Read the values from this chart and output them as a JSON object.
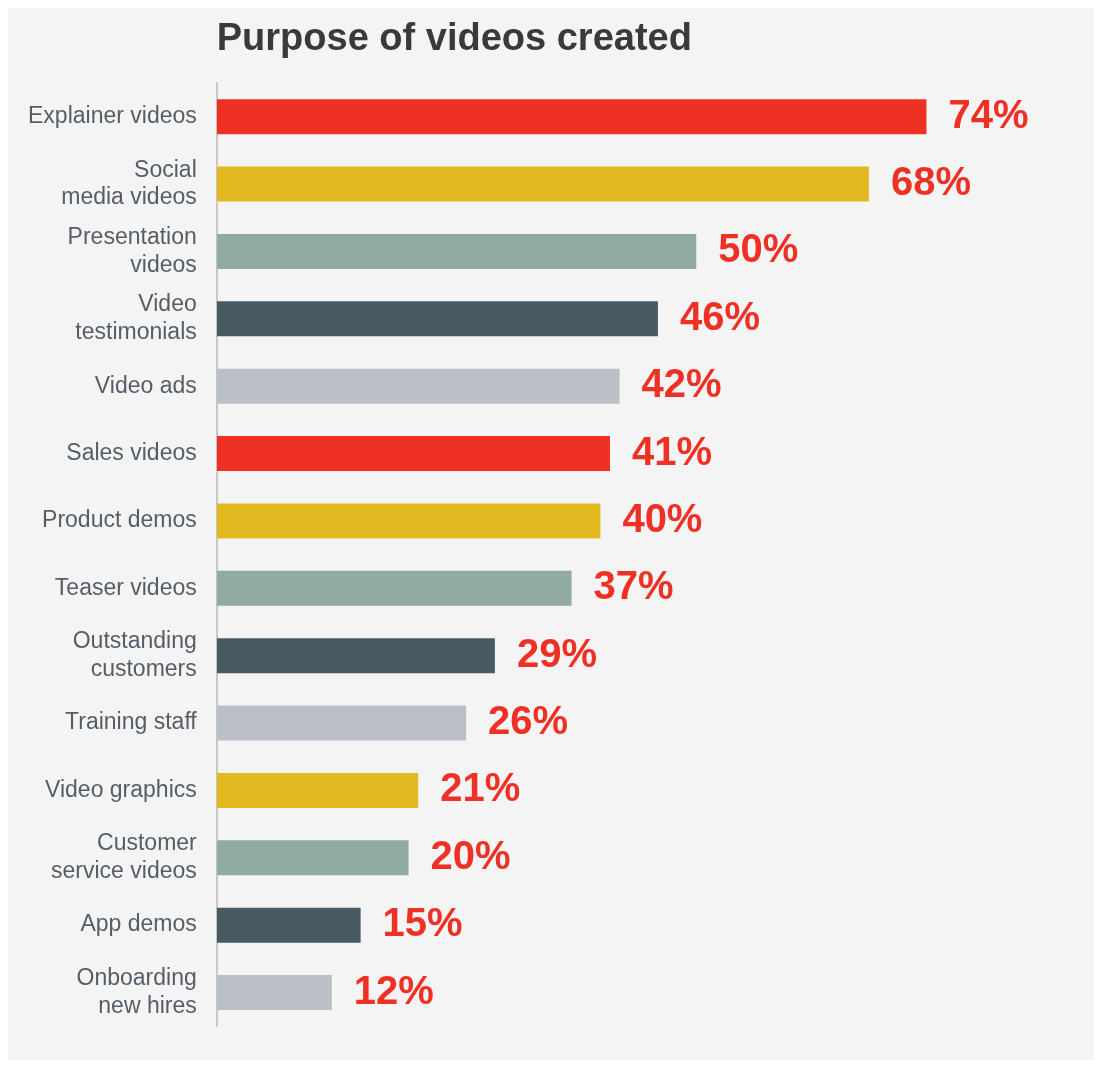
{
  "chart_data": {
    "type": "bar",
    "orientation": "horizontal",
    "title": "Purpose of videos created",
    "categories": [
      "Explainer videos",
      "Social media videos",
      "Presentation videos",
      "Video testimonials",
      "Video ads",
      "Sales videos",
      "Product demos",
      "Teaser videos",
      "Outstanding customers",
      "Training staff",
      "Video graphics",
      "Customer service videos",
      "App demos",
      "Onboarding new hires"
    ],
    "values": [
      74,
      68,
      50,
      46,
      42,
      41,
      40,
      37,
      29,
      26,
      21,
      20,
      15,
      12
    ],
    "colors": [
      "#ee3124",
      "#e3b920",
      "#92aba0",
      "#4a5a63",
      "#bbbfc7",
      "#ee3124",
      "#e3b920",
      "#92aba0",
      "#4a5a63",
      "#bbbfc7",
      "#e3b920",
      "#92aba0",
      "#4a5a63",
      "#bbbfc7"
    ],
    "value_labels": [
      "74%",
      "68%",
      "50%",
      "46%",
      "42%",
      "41%",
      "40%",
      "37%",
      "29%",
      "26%",
      "21%",
      "20%",
      "15%",
      "12%"
    ],
    "grid": false,
    "legend": false
  }
}
